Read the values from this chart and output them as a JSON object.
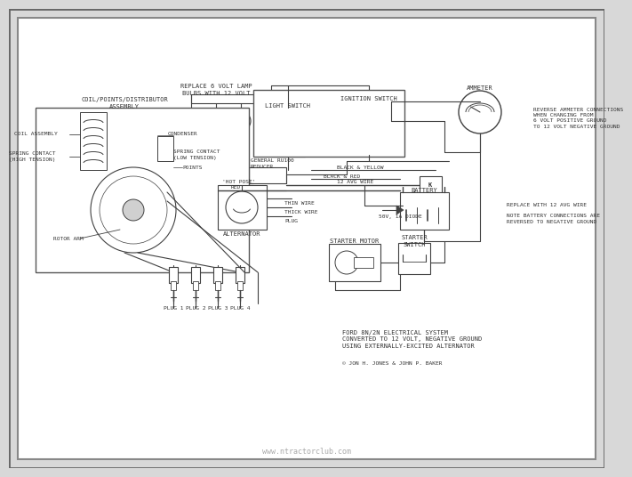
{
  "bg_outer": "#d8d8d8",
  "bg_inner": "#ffffff",
  "border1_color": "#888888",
  "border2_color": "#aaaaaa",
  "lc": "#404040",
  "tc": "#333333",
  "watermark": "www.ntractorclub.com",
  "watermark_color": "#aaaaaa",
  "labels": {
    "replace_lamp": "REPLACE 6 VOLT LAMP\nBULBS WITH 12 VOLT",
    "light_switch": "LIGHT SWITCH",
    "ignition_switch": "IGNITION SWITCH",
    "ammeter": "AMMETER",
    "reverse_ammeter": "REVERSE AMMETER CONNECTIONS\nWHEN CHANGING FROM\n6 VOLT POSITIVE GROUND\nTO 12 VOLT NEGATIVE GROUND",
    "coil_points": "COIL/POINTS/DISTRIBUTOR\nASSEMBLY",
    "coil_assembly": "COIL ASSEMBLY",
    "spring_hi": "SPRING CONTACT\n(HIGH TENSION)",
    "condenser": "CONDENSER",
    "spring_lo": "SPRING CONTACT\n(LOW TENSION)",
    "points": "POINTS",
    "hot_post": "'HOT POST'",
    "general_rudco": "GENERAL RU100\nREDUCER",
    "black_yellow": "BLACK & YELLOW",
    "black_red": "BLACK & RED",
    "red": "RED",
    "12avg": "12 AVG WIRE",
    "50v_diode": "50V, 1A DIODE",
    "thin_wire": "THIN WIRE",
    "thick_wire": "THICK WIRE",
    "plug_label": "PLUG",
    "alternator": "ALTERNATOR",
    "battery": "BATTERY",
    "replace_12avg": "REPLACE WITH 12 AVG WIRE",
    "battery_note": "NOTE BATTERY CONNECTIONS ARE\nREVERSED TO NEGATIVE GROUND",
    "starter_motor": "STARTER MOTOR",
    "starter_switch": "STARTER\nSWITCH",
    "rotor_arm": "ROTOR ARM",
    "plug1": "PLUG 1",
    "plug2": "PLUG 2",
    "plug3": "PLUG 3",
    "plug4": "PLUG 4",
    "diagram_title": "FORD 8N/2N ELECTRICAL SYSTEM\nCONVERTED TO 12 VOLT, NEGATIVE GROUND\nUSING EXTERNALLY-EXCITED ALTERNATOR",
    "diagram_credit": "© JON H. JONES & JOHN P. BAKER"
  },
  "fs": {
    "tiny": 4.5,
    "small": 5.0,
    "med": 5.5,
    "large": 6.5,
    "wm": 6.0
  }
}
